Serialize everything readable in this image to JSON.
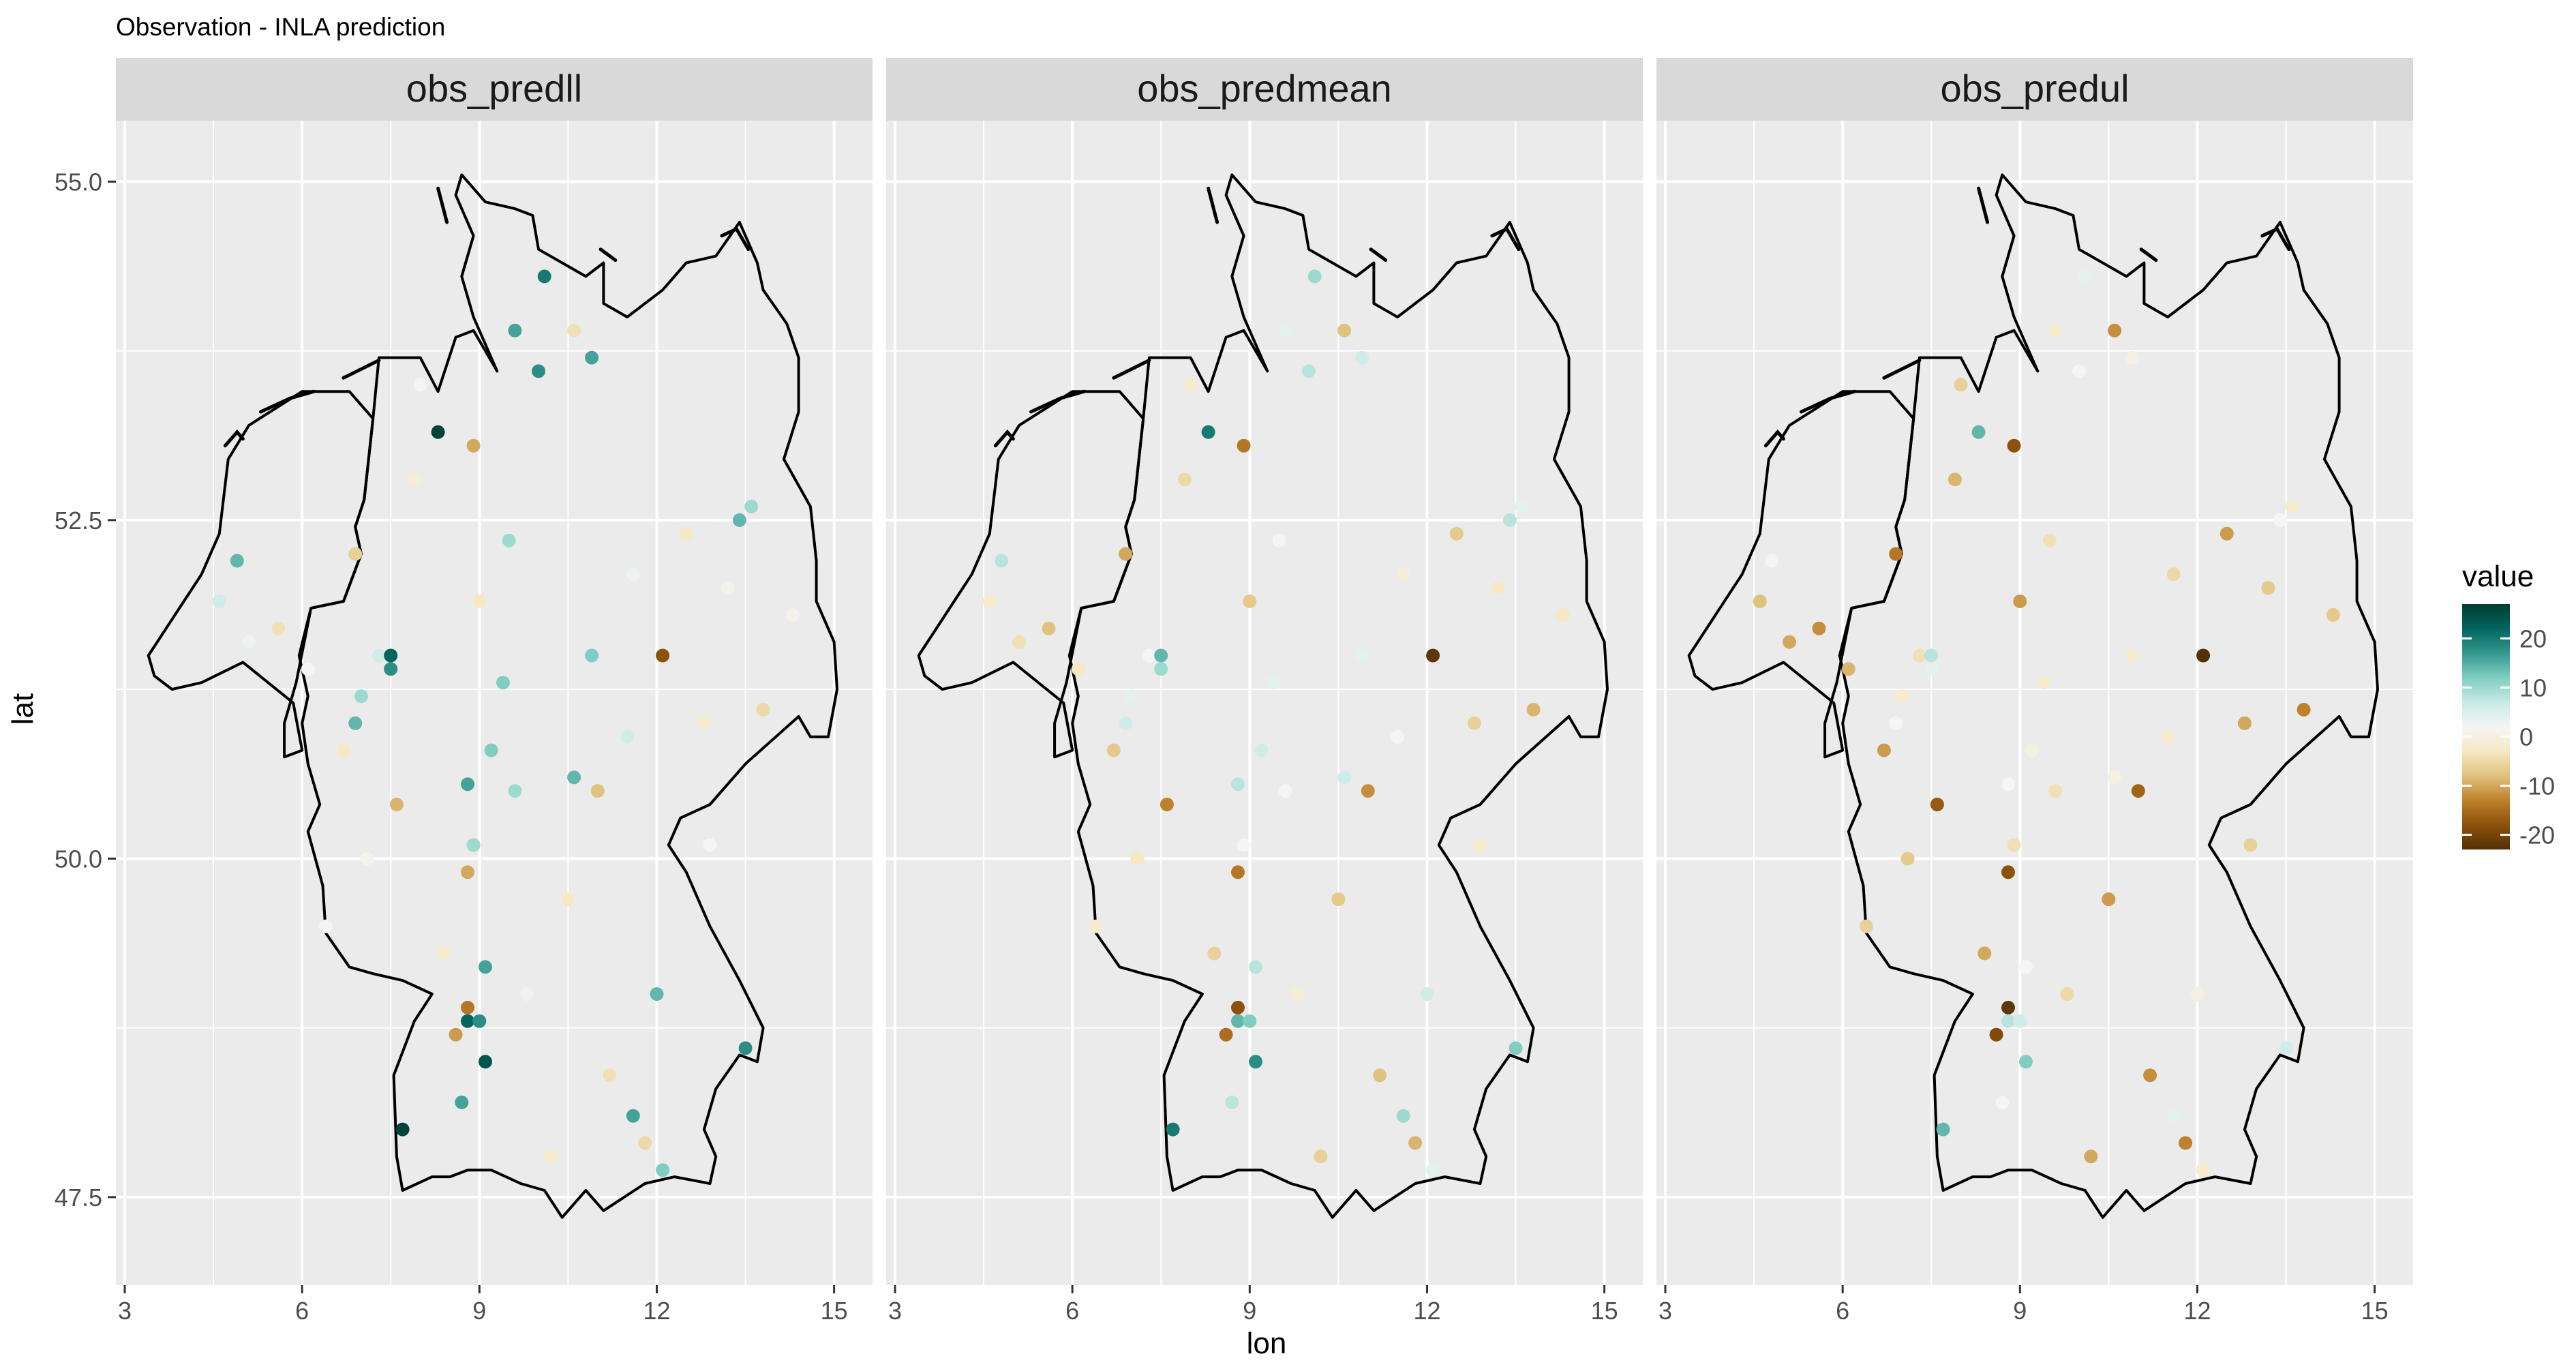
{
  "chart_data": {
    "type": "scatter",
    "title": "Observation - INLA prediction",
    "xlabel": "lon",
    "ylabel": "lat",
    "xlim": [
      2.85,
      15.65
    ],
    "ylim": [
      46.85,
      55.45
    ],
    "xticks": [
      3,
      6,
      9,
      12,
      15
    ],
    "xtick_labels": [
      "3",
      "6",
      "9",
      "12",
      "15"
    ],
    "yticks": [
      47.5,
      50.0,
      52.5,
      55.0
    ],
    "ytick_labels": [
      "47.5",
      "50.0",
      "52.5",
      "55.0"
    ],
    "grid": true,
    "legend": {
      "title": "value",
      "position": "right",
      "breaks": [
        20,
        10,
        0,
        -10,
        -20
      ],
      "labels": [
        "20",
        "10",
        "0",
        "-10",
        "-20"
      ],
      "range": [
        -23,
        27
      ],
      "colors": [
        "#543005",
        "#8c510a",
        "#bf812d",
        "#dfc27d",
        "#f6e8c3",
        "#f5f5f5",
        "#c7eae5",
        "#80cdc1",
        "#35978f",
        "#01665e",
        "#003c30"
      ]
    },
    "panels": [
      {
        "name": "obs_predll",
        "points": [
          {
            "x": 4.9,
            "y": 52.2,
            "v": 14
          },
          {
            "x": 4.6,
            "y": 51.9,
            "v": 6
          },
          {
            "x": 5.1,
            "y": 51.6,
            "v": 3
          },
          {
            "x": 6.1,
            "y": 51.4,
            "v": 2
          },
          {
            "x": 7.3,
            "y": 51.5,
            "v": 6
          },
          {
            "x": 7.0,
            "y": 51.2,
            "v": 10
          },
          {
            "x": 7.5,
            "y": 51.5,
            "v": 22
          },
          {
            "x": 7.5,
            "y": 51.4,
            "v": 18
          },
          {
            "x": 6.9,
            "y": 51.0,
            "v": 14
          },
          {
            "x": 8.3,
            "y": 53.15,
            "v": 26
          },
          {
            "x": 9.6,
            "y": 53.9,
            "v": 16
          },
          {
            "x": 10.0,
            "y": 53.6,
            "v": 18
          },
          {
            "x": 10.1,
            "y": 54.3,
            "v": 20
          },
          {
            "x": 10.9,
            "y": 53.7,
            "v": 16
          },
          {
            "x": 9.5,
            "y": 52.35,
            "v": 10
          },
          {
            "x": 10.9,
            "y": 51.5,
            "v": 12
          },
          {
            "x": 13.4,
            "y": 52.5,
            "v": 14
          },
          {
            "x": 13.6,
            "y": 52.6,
            "v": 10
          },
          {
            "x": 9.2,
            "y": 50.8,
            "v": 12
          },
          {
            "x": 9.6,
            "y": 50.5,
            "v": 10
          },
          {
            "x": 8.8,
            "y": 50.55,
            "v": 16
          },
          {
            "x": 8.9,
            "y": 50.1,
            "v": 10
          },
          {
            "x": 9.4,
            "y": 51.3,
            "v": 12
          },
          {
            "x": 10.6,
            "y": 50.6,
            "v": 14
          },
          {
            "x": 9.1,
            "y": 49.2,
            "v": 16
          },
          {
            "x": 8.8,
            "y": 48.8,
            "v": 22
          },
          {
            "x": 9.0,
            "y": 48.8,
            "v": 18
          },
          {
            "x": 9.1,
            "y": 48.5,
            "v": 24
          },
          {
            "x": 8.7,
            "y": 48.2,
            "v": 16
          },
          {
            "x": 7.7,
            "y": 48.0,
            "v": 26
          },
          {
            "x": 12.0,
            "y": 49.0,
            "v": 14
          },
          {
            "x": 11.6,
            "y": 48.1,
            "v": 16
          },
          {
            "x": 13.5,
            "y": 48.6,
            "v": 18
          },
          {
            "x": 12.1,
            "y": 47.7,
            "v": 12
          },
          {
            "x": 12.1,
            "y": 51.5,
            "v": -18
          },
          {
            "x": 11.0,
            "y": 50.5,
            "v": -8
          },
          {
            "x": 7.6,
            "y": 50.4,
            "v": -9
          },
          {
            "x": 8.8,
            "y": 49.9,
            "v": -10
          },
          {
            "x": 8.8,
            "y": 48.9,
            "v": -14
          },
          {
            "x": 8.6,
            "y": 48.7,
            "v": -11
          },
          {
            "x": 8.9,
            "y": 53.05,
            "v": -10
          },
          {
            "x": 6.9,
            "y": 52.25,
            "v": -6
          },
          {
            "x": 5.6,
            "y": 51.7,
            "v": -4
          },
          {
            "x": 10.6,
            "y": 53.9,
            "v": -4
          },
          {
            "x": 9.0,
            "y": 51.9,
            "v": -3
          },
          {
            "x": 12.5,
            "y": 52.4,
            "v": -3
          },
          {
            "x": 12.8,
            "y": 51.0,
            "v": -2
          },
          {
            "x": 13.8,
            "y": 51.1,
            "v": -5
          },
          {
            "x": 10.5,
            "y": 49.7,
            "v": -3
          },
          {
            "x": 11.2,
            "y": 48.4,
            "v": -4
          },
          {
            "x": 6.7,
            "y": 50.8,
            "v": -3
          },
          {
            "x": 7.1,
            "y": 50.0,
            "v": 1
          },
          {
            "x": 8.4,
            "y": 49.3,
            "v": -2
          },
          {
            "x": 11.8,
            "y": 47.9,
            "v": -5
          },
          {
            "x": 10.2,
            "y": 47.8,
            "v": -2
          },
          {
            "x": 13.2,
            "y": 52.0,
            "v": 1
          },
          {
            "x": 11.6,
            "y": 52.1,
            "v": 3
          },
          {
            "x": 8.0,
            "y": 53.5,
            "v": 2
          },
          {
            "x": 14.3,
            "y": 51.8,
            "v": 1
          },
          {
            "x": 6.4,
            "y": 49.5,
            "v": 2
          },
          {
            "x": 12.9,
            "y": 50.1,
            "v": 2
          },
          {
            "x": 7.9,
            "y": 52.8,
            "v": -1
          },
          {
            "x": 9.8,
            "y": 49.0,
            "v": 3
          },
          {
            "x": 11.5,
            "y": 50.9,
            "v": 6
          }
        ]
      },
      {
        "name": "obs_predmean",
        "points": [
          {
            "x": 4.8,
            "y": 52.2,
            "v": 8
          },
          {
            "x": 4.6,
            "y": 51.9,
            "v": -2
          },
          {
            "x": 5.1,
            "y": 51.6,
            "v": -4
          },
          {
            "x": 6.1,
            "y": 51.4,
            "v": -3
          },
          {
            "x": 7.3,
            "y": 51.5,
            "v": 2
          },
          {
            "x": 7.0,
            "y": 51.2,
            "v": 4
          },
          {
            "x": 7.5,
            "y": 51.5,
            "v": 14
          },
          {
            "x": 7.5,
            "y": 51.4,
            "v": 10
          },
          {
            "x": 6.9,
            "y": 51.0,
            "v": 6
          },
          {
            "x": 8.3,
            "y": 53.15,
            "v": 20
          },
          {
            "x": 9.6,
            "y": 53.9,
            "v": 4
          },
          {
            "x": 10.0,
            "y": 53.6,
            "v": 8
          },
          {
            "x": 10.1,
            "y": 54.3,
            "v": 10
          },
          {
            "x": 10.9,
            "y": 53.7,
            "v": 6
          },
          {
            "x": 9.5,
            "y": 52.35,
            "v": 2
          },
          {
            "x": 10.9,
            "y": 51.5,
            "v": 4
          },
          {
            "x": 13.4,
            "y": 52.5,
            "v": 8
          },
          {
            "x": 13.6,
            "y": 52.6,
            "v": 4
          },
          {
            "x": 9.2,
            "y": 50.8,
            "v": 6
          },
          {
            "x": 9.6,
            "y": 50.5,
            "v": 2
          },
          {
            "x": 8.8,
            "y": 50.55,
            "v": 8
          },
          {
            "x": 8.9,
            "y": 50.1,
            "v": 2
          },
          {
            "x": 9.4,
            "y": 51.3,
            "v": 4
          },
          {
            "x": 10.6,
            "y": 50.6,
            "v": 6
          },
          {
            "x": 9.1,
            "y": 49.2,
            "v": 8
          },
          {
            "x": 8.8,
            "y": 48.8,
            "v": 14
          },
          {
            "x": 9.0,
            "y": 48.8,
            "v": 12
          },
          {
            "x": 9.1,
            "y": 48.5,
            "v": 18
          },
          {
            "x": 8.7,
            "y": 48.2,
            "v": 8
          },
          {
            "x": 7.7,
            "y": 48.0,
            "v": 20
          },
          {
            "x": 12.0,
            "y": 49.0,
            "v": 6
          },
          {
            "x": 11.6,
            "y": 48.1,
            "v": 10
          },
          {
            "x": 13.5,
            "y": 48.6,
            "v": 12
          },
          {
            "x": 12.1,
            "y": 47.7,
            "v": 4
          },
          {
            "x": 12.1,
            "y": 51.5,
            "v": -22
          },
          {
            "x": 11.0,
            "y": 50.5,
            "v": -12
          },
          {
            "x": 7.6,
            "y": 50.4,
            "v": -13
          },
          {
            "x": 8.8,
            "y": 49.9,
            "v": -14
          },
          {
            "x": 8.8,
            "y": 48.9,
            "v": -18
          },
          {
            "x": 8.6,
            "y": 48.7,
            "v": -15
          },
          {
            "x": 8.9,
            "y": 53.05,
            "v": -14
          },
          {
            "x": 6.9,
            "y": 52.25,
            "v": -10
          },
          {
            "x": 5.6,
            "y": 51.7,
            "v": -8
          },
          {
            "x": 10.6,
            "y": 53.9,
            "v": -8
          },
          {
            "x": 9.0,
            "y": 51.9,
            "v": -7
          },
          {
            "x": 12.5,
            "y": 52.4,
            "v": -7
          },
          {
            "x": 12.8,
            "y": 51.0,
            "v": -6
          },
          {
            "x": 13.8,
            "y": 51.1,
            "v": -9
          },
          {
            "x": 10.5,
            "y": 49.7,
            "v": -7
          },
          {
            "x": 11.2,
            "y": 48.4,
            "v": -8
          },
          {
            "x": 6.7,
            "y": 50.8,
            "v": -7
          },
          {
            "x": 7.1,
            "y": 50.0,
            "v": -3
          },
          {
            "x": 8.4,
            "y": 49.3,
            "v": -6
          },
          {
            "x": 11.8,
            "y": 47.9,
            "v": -9
          },
          {
            "x": 10.2,
            "y": 47.8,
            "v": -6
          },
          {
            "x": 13.2,
            "y": 52.0,
            "v": -3
          },
          {
            "x": 11.6,
            "y": 52.1,
            "v": -1
          },
          {
            "x": 8.0,
            "y": 53.5,
            "v": -2
          },
          {
            "x": 14.3,
            "y": 51.8,
            "v": -3
          },
          {
            "x": 6.4,
            "y": 49.5,
            "v": -2
          },
          {
            "x": 12.9,
            "y": 50.1,
            "v": -2
          },
          {
            "x": 7.9,
            "y": 52.8,
            "v": -5
          },
          {
            "x": 9.8,
            "y": 49.0,
            "v": -1
          },
          {
            "x": 11.5,
            "y": 50.9,
            "v": 2
          }
        ]
      },
      {
        "name": "obs_predul",
        "points": [
          {
            "x": 4.8,
            "y": 52.2,
            "v": 2
          },
          {
            "x": 4.6,
            "y": 51.9,
            "v": -8
          },
          {
            "x": 5.1,
            "y": 51.6,
            "v": -10
          },
          {
            "x": 6.1,
            "y": 51.4,
            "v": -9
          },
          {
            "x": 7.3,
            "y": 51.5,
            "v": -4
          },
          {
            "x": 7.0,
            "y": 51.2,
            "v": -2
          },
          {
            "x": 7.5,
            "y": 51.5,
            "v": 8
          },
          {
            "x": 7.5,
            "y": 51.4,
            "v": 4
          },
          {
            "x": 6.9,
            "y": 51.0,
            "v": 2
          },
          {
            "x": 8.3,
            "y": 53.15,
            "v": 14
          },
          {
            "x": 9.6,
            "y": 53.9,
            "v": -2
          },
          {
            "x": 10.0,
            "y": 53.6,
            "v": 2
          },
          {
            "x": 10.1,
            "y": 54.3,
            "v": 4
          },
          {
            "x": 10.9,
            "y": 53.7,
            "v": 0
          },
          {
            "x": 9.5,
            "y": 52.35,
            "v": -4
          },
          {
            "x": 10.9,
            "y": 51.5,
            "v": -2
          },
          {
            "x": 13.4,
            "y": 52.5,
            "v": 2
          },
          {
            "x": 13.6,
            "y": 52.6,
            "v": -2
          },
          {
            "x": 9.2,
            "y": 50.8,
            "v": 0
          },
          {
            "x": 9.6,
            "y": 50.5,
            "v": -4
          },
          {
            "x": 8.8,
            "y": 50.55,
            "v": 2
          },
          {
            "x": 8.9,
            "y": 50.1,
            "v": -4
          },
          {
            "x": 9.4,
            "y": 51.3,
            "v": -2
          },
          {
            "x": 10.6,
            "y": 50.6,
            "v": 0
          },
          {
            "x": 9.1,
            "y": 49.2,
            "v": 2
          },
          {
            "x": 8.8,
            "y": 48.8,
            "v": 8
          },
          {
            "x": 9.0,
            "y": 48.8,
            "v": 6
          },
          {
            "x": 9.1,
            "y": 48.5,
            "v": 12
          },
          {
            "x": 8.7,
            "y": 48.2,
            "v": 2
          },
          {
            "x": 7.7,
            "y": 48.0,
            "v": 14
          },
          {
            "x": 12.0,
            "y": 49.0,
            "v": 0
          },
          {
            "x": 11.6,
            "y": 48.1,
            "v": 4
          },
          {
            "x": 13.5,
            "y": 48.6,
            "v": 6
          },
          {
            "x": 12.1,
            "y": 47.7,
            "v": -2
          },
          {
            "x": 12.1,
            "y": 51.5,
            "v": -26
          },
          {
            "x": 11.0,
            "y": 50.5,
            "v": -16
          },
          {
            "x": 7.6,
            "y": 50.4,
            "v": -17
          },
          {
            "x": 8.8,
            "y": 49.9,
            "v": -18
          },
          {
            "x": 8.8,
            "y": 48.9,
            "v": -22
          },
          {
            "x": 8.6,
            "y": 48.7,
            "v": -19
          },
          {
            "x": 8.9,
            "y": 53.05,
            "v": -18
          },
          {
            "x": 6.9,
            "y": 52.25,
            "v": -14
          },
          {
            "x": 5.6,
            "y": 51.7,
            "v": -12
          },
          {
            "x": 10.6,
            "y": 53.9,
            "v": -12
          },
          {
            "x": 9.0,
            "y": 51.9,
            "v": -11
          },
          {
            "x": 12.5,
            "y": 52.4,
            "v": -11
          },
          {
            "x": 12.8,
            "y": 51.0,
            "v": -10
          },
          {
            "x": 13.8,
            "y": 51.1,
            "v": -13
          },
          {
            "x": 10.5,
            "y": 49.7,
            "v": -11
          },
          {
            "x": 11.2,
            "y": 48.4,
            "v": -12
          },
          {
            "x": 6.7,
            "y": 50.8,
            "v": -11
          },
          {
            "x": 7.1,
            "y": 50.0,
            "v": -7
          },
          {
            "x": 8.4,
            "y": 49.3,
            "v": -10
          },
          {
            "x": 11.8,
            "y": 47.9,
            "v": -13
          },
          {
            "x": 10.2,
            "y": 47.8,
            "v": -10
          },
          {
            "x": 13.2,
            "y": 52.0,
            "v": -7
          },
          {
            "x": 11.6,
            "y": 52.1,
            "v": -5
          },
          {
            "x": 8.0,
            "y": 53.5,
            "v": -6
          },
          {
            "x": 14.3,
            "y": 51.8,
            "v": -7
          },
          {
            "x": 6.4,
            "y": 49.5,
            "v": -6
          },
          {
            "x": 12.9,
            "y": 50.1,
            "v": -6
          },
          {
            "x": 7.9,
            "y": 52.8,
            "v": -9
          },
          {
            "x": 9.8,
            "y": 49.0,
            "v": -5
          },
          {
            "x": 11.5,
            "y": 50.9,
            "v": -2
          }
        ]
      }
    ]
  }
}
